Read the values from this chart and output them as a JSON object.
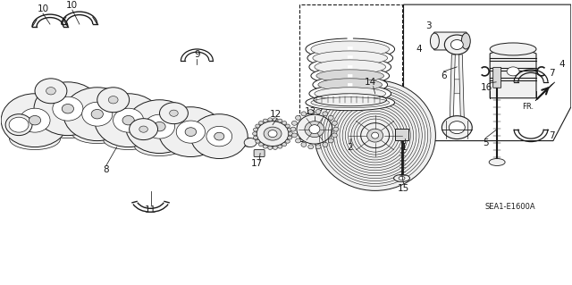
{
  "background_color": "#ffffff",
  "fig_width": 6.4,
  "fig_height": 3.19,
  "dpi": 100,
  "diagram_code": "SEA1-E1600A",
  "line_color": "#1a1a1a",
  "fill_light": "#f0f0f0",
  "fill_mid": "#d8d8d8",
  "fill_dark": "#b0b0b0"
}
